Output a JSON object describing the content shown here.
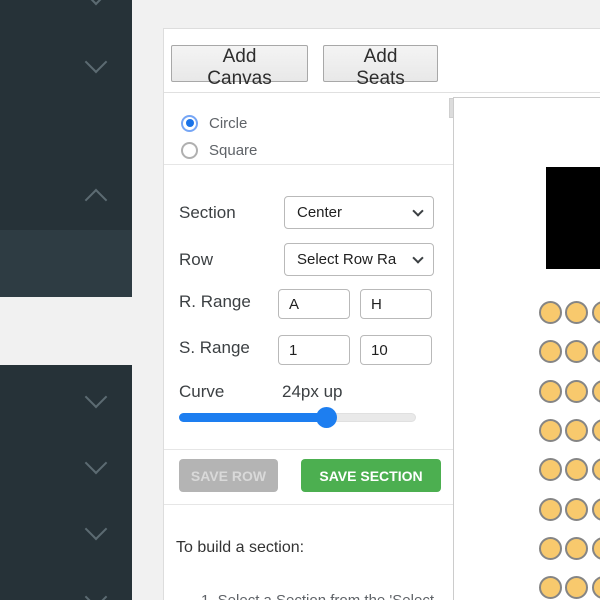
{
  "toolbar": {
    "add_canvas_label": "Add Canvas",
    "add_seats_label": "Add Seats"
  },
  "shape_picker": {
    "options": [
      {
        "label": "Circle",
        "selected": true
      },
      {
        "label": "Square",
        "selected": false
      }
    ]
  },
  "form": {
    "section_label": "Section",
    "section_value": "Center",
    "row_label": "Row",
    "row_value": "Select Row Ra",
    "r_range_label": "R. Range",
    "r_range_from": "A",
    "r_range_to": "H",
    "s_range_label": "S. Range",
    "s_range_from": "1",
    "s_range_to": "10",
    "curve_label": "Curve",
    "curve_value": "24px up",
    "curve_percent": 62
  },
  "actions": {
    "save_row_label": "SAVE ROW",
    "save_section_label": "SAVE SECTION"
  },
  "instructions": {
    "heading": "To build a section:",
    "partial_step": "1. Select a Section from the 'Select"
  },
  "seat_map": {
    "visible_rows": 8,
    "visible_cols": 3,
    "seat_fill": "#f8c96d",
    "seat_border": "#858585",
    "stage_color": "#000000"
  },
  "colors": {
    "accent_blue": "#1a73e8",
    "slider_blue": "#1d7ef0",
    "save_section_green": "#4caf50",
    "save_row_gray": "#b4b4b4",
    "sidebar_bg": "#263238",
    "sidebar_selected_bg": "#2e3c43",
    "page_bg": "#f1f1f1"
  },
  "icons": {
    "sidebar_collapsed": "chevron-down",
    "sidebar_expanded": "chevron-up",
    "select_arrow": "chevron-down"
  }
}
